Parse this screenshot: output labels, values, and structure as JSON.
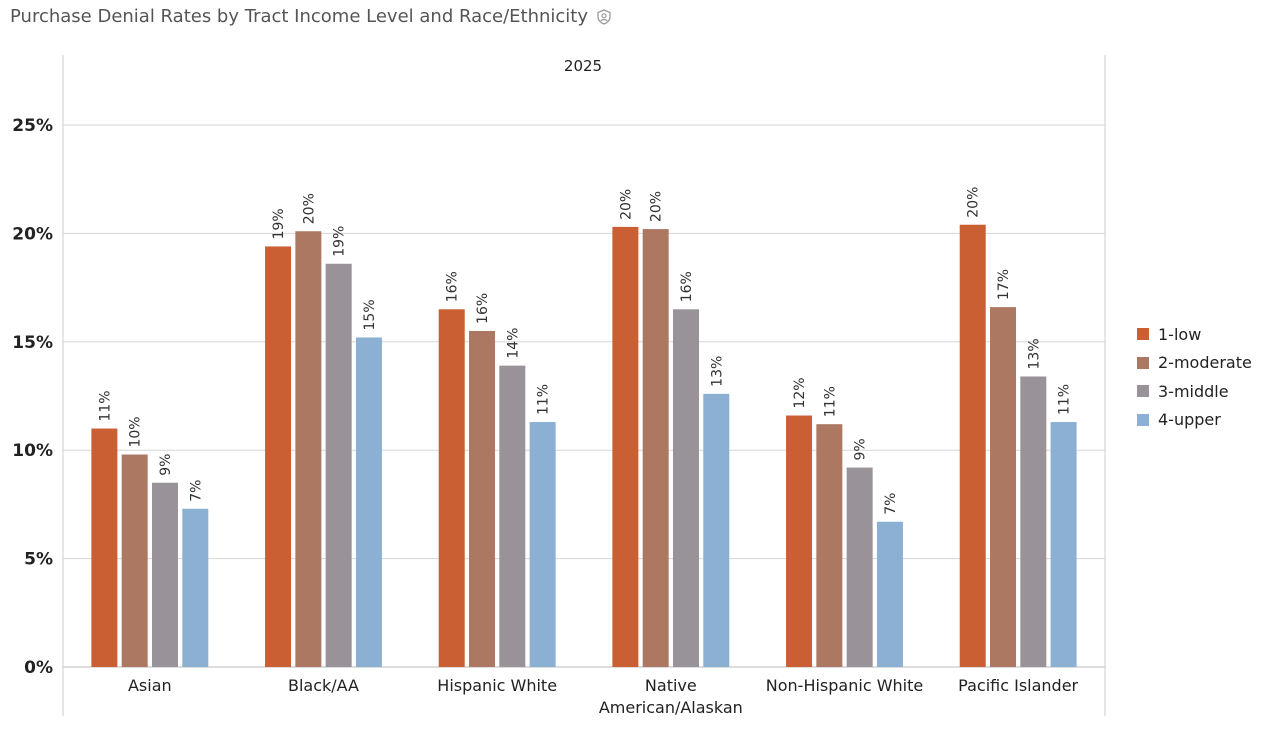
{
  "title": "Purchase Denial Rates by Tract Income Level and Race/Ethnicity",
  "icons": {
    "info": "info-shield-icon"
  },
  "chart_data": {
    "type": "bar",
    "panel_title": "2025",
    "categories": [
      "Asian",
      "Black/AA",
      "Hispanic White",
      "Native American/Alaskan",
      "Non-Hispanic White",
      "Pacific Islander"
    ],
    "category_lines": [
      [
        "Asian"
      ],
      [
        "Black/AA"
      ],
      [
        "Hispanic White"
      ],
      [
        "Native",
        "American/Alaskan"
      ],
      [
        "Non-Hispanic White"
      ],
      [
        "Pacific Islander"
      ]
    ],
    "series": [
      {
        "name": "1-low",
        "color": "#C95F33",
        "values": [
          11.0,
          19.4,
          16.5,
          20.3,
          11.6,
          20.4
        ],
        "labels": [
          "11%",
          "19%",
          "16%",
          "20%",
          "12%",
          "20%"
        ]
      },
      {
        "name": "2-moderate",
        "color": "#AD7862",
        "values": [
          9.8,
          20.1,
          15.5,
          20.2,
          11.2,
          16.6
        ],
        "labels": [
          "10%",
          "20%",
          "16%",
          "20%",
          "11%",
          "17%"
        ]
      },
      {
        "name": "3-middle",
        "color": "#999399",
        "values": [
          8.5,
          18.6,
          13.9,
          16.5,
          9.2,
          13.4
        ],
        "labels": [
          "9%",
          "19%",
          "14%",
          "16%",
          "9%",
          "13%"
        ]
      },
      {
        "name": "4-upper",
        "color": "#8CB0D4",
        "values": [
          7.3,
          15.2,
          11.3,
          12.6,
          6.7,
          11.3
        ],
        "labels": [
          "7%",
          "15%",
          "11%",
          "13%",
          "7%",
          "11%"
        ]
      }
    ],
    "y_ticks": [
      0,
      5,
      10,
      15,
      20,
      25
    ],
    "y_tick_labels": [
      "0%",
      "5%",
      "10%",
      "15%",
      "20%",
      "25%"
    ],
    "ylim": [
      0,
      25
    ],
    "grid": true,
    "legend_position": "right"
  }
}
